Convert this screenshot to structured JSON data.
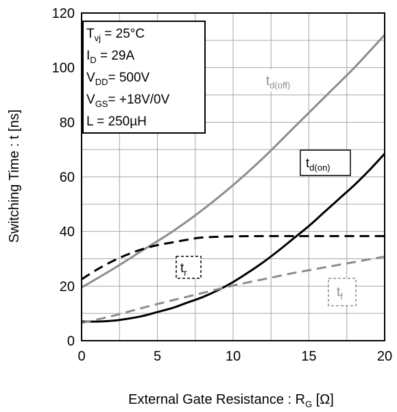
{
  "chart_data": {
    "type": "line",
    "xlabel": "External Gate Resistance : R",
    "xlabel_sub": "G",
    "xlabel_unit": " [Ω]",
    "ylabel": "Switching Time : t [ns]",
    "xlim": [
      0,
      20
    ],
    "ylim": [
      0,
      120
    ],
    "x_ticks": [
      0,
      5,
      10,
      15,
      20
    ],
    "y_ticks": [
      0,
      20,
      40,
      60,
      80,
      100,
      120
    ],
    "x_minor_grid": [
      0,
      2.5,
      5,
      7.5,
      10,
      12.5,
      15,
      17.5,
      20
    ],
    "y_minor_grid": [
      0,
      10,
      20,
      30,
      40,
      50,
      60,
      70,
      80,
      90,
      100,
      110,
      120
    ],
    "grid": true,
    "conditions": [
      {
        "main": "T",
        "sub": "vj",
        "value": " =   25°C"
      },
      {
        "main": "I",
        "sub": "D",
        "value": " =   29A"
      },
      {
        "main": "V",
        "sub": "DD",
        "value": "= 500V"
      },
      {
        "main": "V",
        "sub": "GS",
        "value": "= +18V/0V"
      },
      {
        "main": "L =",
        "sub": "",
        "value": "    250µH"
      }
    ],
    "series": [
      {
        "name": "td(off)",
        "label_main": "t",
        "label_sub": "d(off)",
        "color": "#8c8c8c",
        "dash": "solid",
        "x": [
          0,
          2,
          4,
          6,
          8,
          10,
          12,
          14,
          16,
          18,
          20
        ],
        "y": [
          19.5,
          26,
          33,
          40,
          48,
          57,
          67,
          78,
          89,
          100,
          112
        ]
      },
      {
        "name": "td(on)",
        "label_main": "t",
        "label_sub": "d(on)",
        "color": "#000000",
        "dash": "solid",
        "x": [
          0,
          1,
          2,
          3,
          4,
          5,
          6,
          7,
          8,
          9,
          10,
          11,
          12,
          13,
          14,
          15,
          16,
          17,
          18,
          19,
          20
        ],
        "y": [
          7,
          7,
          7.3,
          8,
          9,
          10.5,
          12,
          14,
          16,
          18.5,
          21.5,
          25,
          28.8,
          33,
          37.5,
          42,
          47,
          52,
          57,
          62.5,
          68.5
        ]
      },
      {
        "name": "tr",
        "label_main": "t",
        "label_sub": "r",
        "color": "#000000",
        "dash": "dashed",
        "x": [
          0,
          1,
          2,
          3,
          4,
          5,
          6,
          7,
          8,
          10,
          12,
          14,
          16,
          18,
          20
        ],
        "y": [
          22.5,
          26,
          29,
          31.5,
          33.5,
          35,
          36,
          37,
          37.8,
          38.2,
          38.3,
          38.3,
          38.3,
          38.3,
          38.3
        ]
      },
      {
        "name": "tf",
        "label_main": "t",
        "label_sub": "f",
        "color": "#8c8c8c",
        "dash": "dashed",
        "x": [
          0,
          2,
          4,
          6,
          8,
          10,
          12,
          14,
          16,
          18,
          20
        ],
        "y": [
          6.5,
          9,
          12,
          14.8,
          17.5,
          20.2,
          22.5,
          24.8,
          26.8,
          28.8,
          30.8
        ]
      }
    ]
  }
}
